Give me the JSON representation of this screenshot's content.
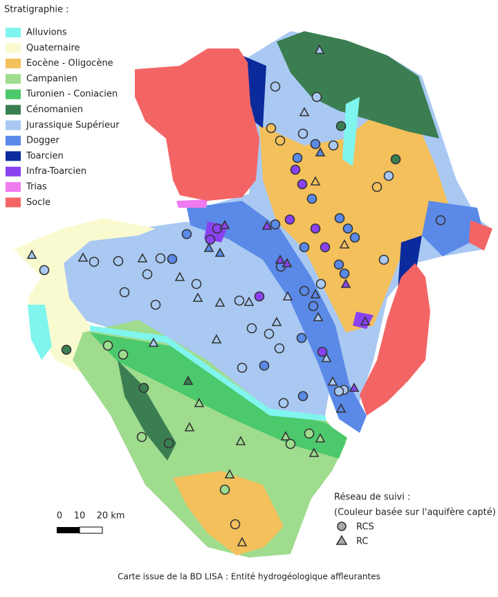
{
  "legend": {
    "title": "Stratigraphie :",
    "items": [
      {
        "label": "Alluvions",
        "color": "#80f5ee"
      },
      {
        "label": "Quaternaire",
        "color": "#fafad0"
      },
      {
        "label": "Eocène - Oligocène",
        "color": "#f3c05c"
      },
      {
        "label": "Campanien",
        "color": "#9fdc8e"
      },
      {
        "label": "Turonien - Coniacien",
        "color": "#4cc96c"
      },
      {
        "label": "Cénomanien",
        "color": "#3b7e52"
      },
      {
        "label": "Jurassique Supérieur",
        "color": "#a9c9f3"
      },
      {
        "label": "Dogger",
        "color": "#5a89e8"
      },
      {
        "label": "Toarcien",
        "color": "#0b2a9c"
      },
      {
        "label": "Infra-Toarcien",
        "color": "#8a42f0"
      },
      {
        "label": "Trias",
        "color": "#f07af0"
      },
      {
        "label": "Socle",
        "color": "#f36565"
      }
    ]
  },
  "scale": {
    "labels": [
      "0",
      "10",
      "20 km"
    ]
  },
  "network": {
    "title": "Réseau de suivi :",
    "subtitle": "(Couleur basée sur l'aquifère capté)",
    "items": [
      {
        "label": "RCS",
        "symbol": "circle"
      },
      {
        "label": "RC",
        "symbol": "triangle"
      }
    ]
  },
  "caption": "Carte issue de la BD LISA : Entité hydrogéologique affleurantes"
}
